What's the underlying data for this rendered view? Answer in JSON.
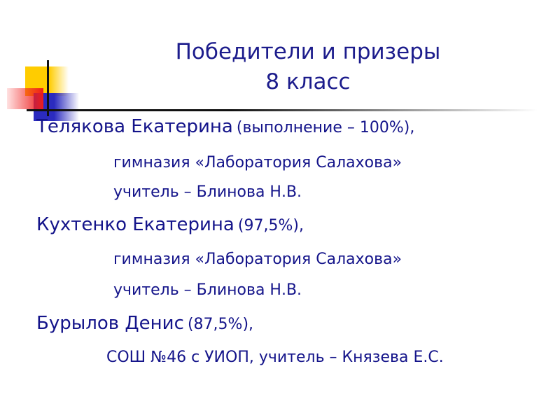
{
  "slide": {
    "title_line1": "Победители и призеры",
    "title_line2": "8 класс",
    "entries": [
      {
        "name": "Телякова Екатерина",
        "result": "(выполнение – 100%),",
        "school": "гимназия «Лаборатория Салахова»",
        "teacher": "учитель – Блинова Н.В."
      },
      {
        "name": "Кухтенко Екатерина",
        "result": "(97,5%),",
        "school": "гимназия «Лаборатория Салахова»",
        "teacher": "учитель – Блинова Н.В."
      },
      {
        "name": "Бурылов Денис",
        "result": "(87,5%),",
        "school_teacher": "СОШ №46 с УИОП, учитель – Князева Е.С."
      }
    ],
    "colors": {
      "text": "#14148a",
      "yellow": "#ffcc00",
      "blue": "#2b2bbf",
      "red": "#ee1c1c"
    }
  }
}
